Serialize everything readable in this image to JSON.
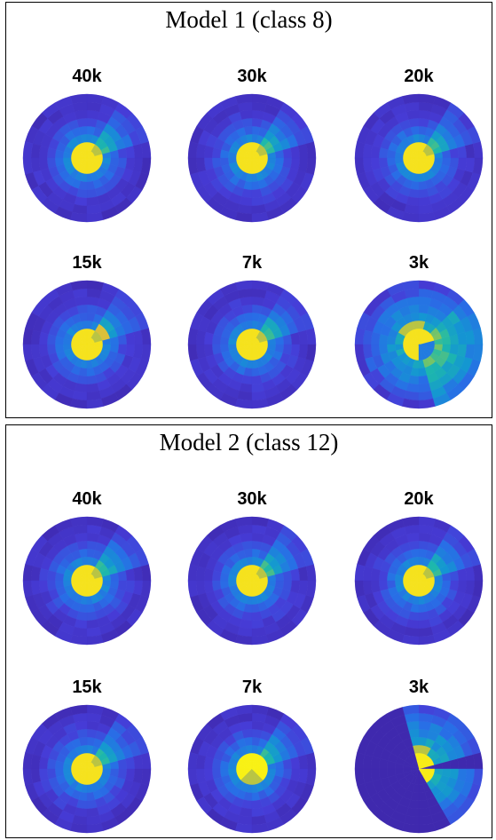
{
  "panels": [
    {
      "title": "Model 1 (class 8)",
      "plots": [
        {
          "label": "40k",
          "variant": "a"
        },
        {
          "label": "30k",
          "variant": "a"
        },
        {
          "label": "20k",
          "variant": "a"
        },
        {
          "label": "15k",
          "variant": "b"
        },
        {
          "label": "7k",
          "variant": "a"
        },
        {
          "label": "3k",
          "variant": "c"
        }
      ]
    },
    {
      "title": "Model 2 (class 12)",
      "plots": [
        {
          "label": "40k",
          "variant": "d"
        },
        {
          "label": "30k",
          "variant": "d"
        },
        {
          "label": "20k",
          "variant": "d"
        },
        {
          "label": "15k",
          "variant": "d"
        },
        {
          "label": "7k",
          "variant": "e"
        },
        {
          "label": "3k",
          "variant": "f"
        }
      ]
    }
  ]
}
